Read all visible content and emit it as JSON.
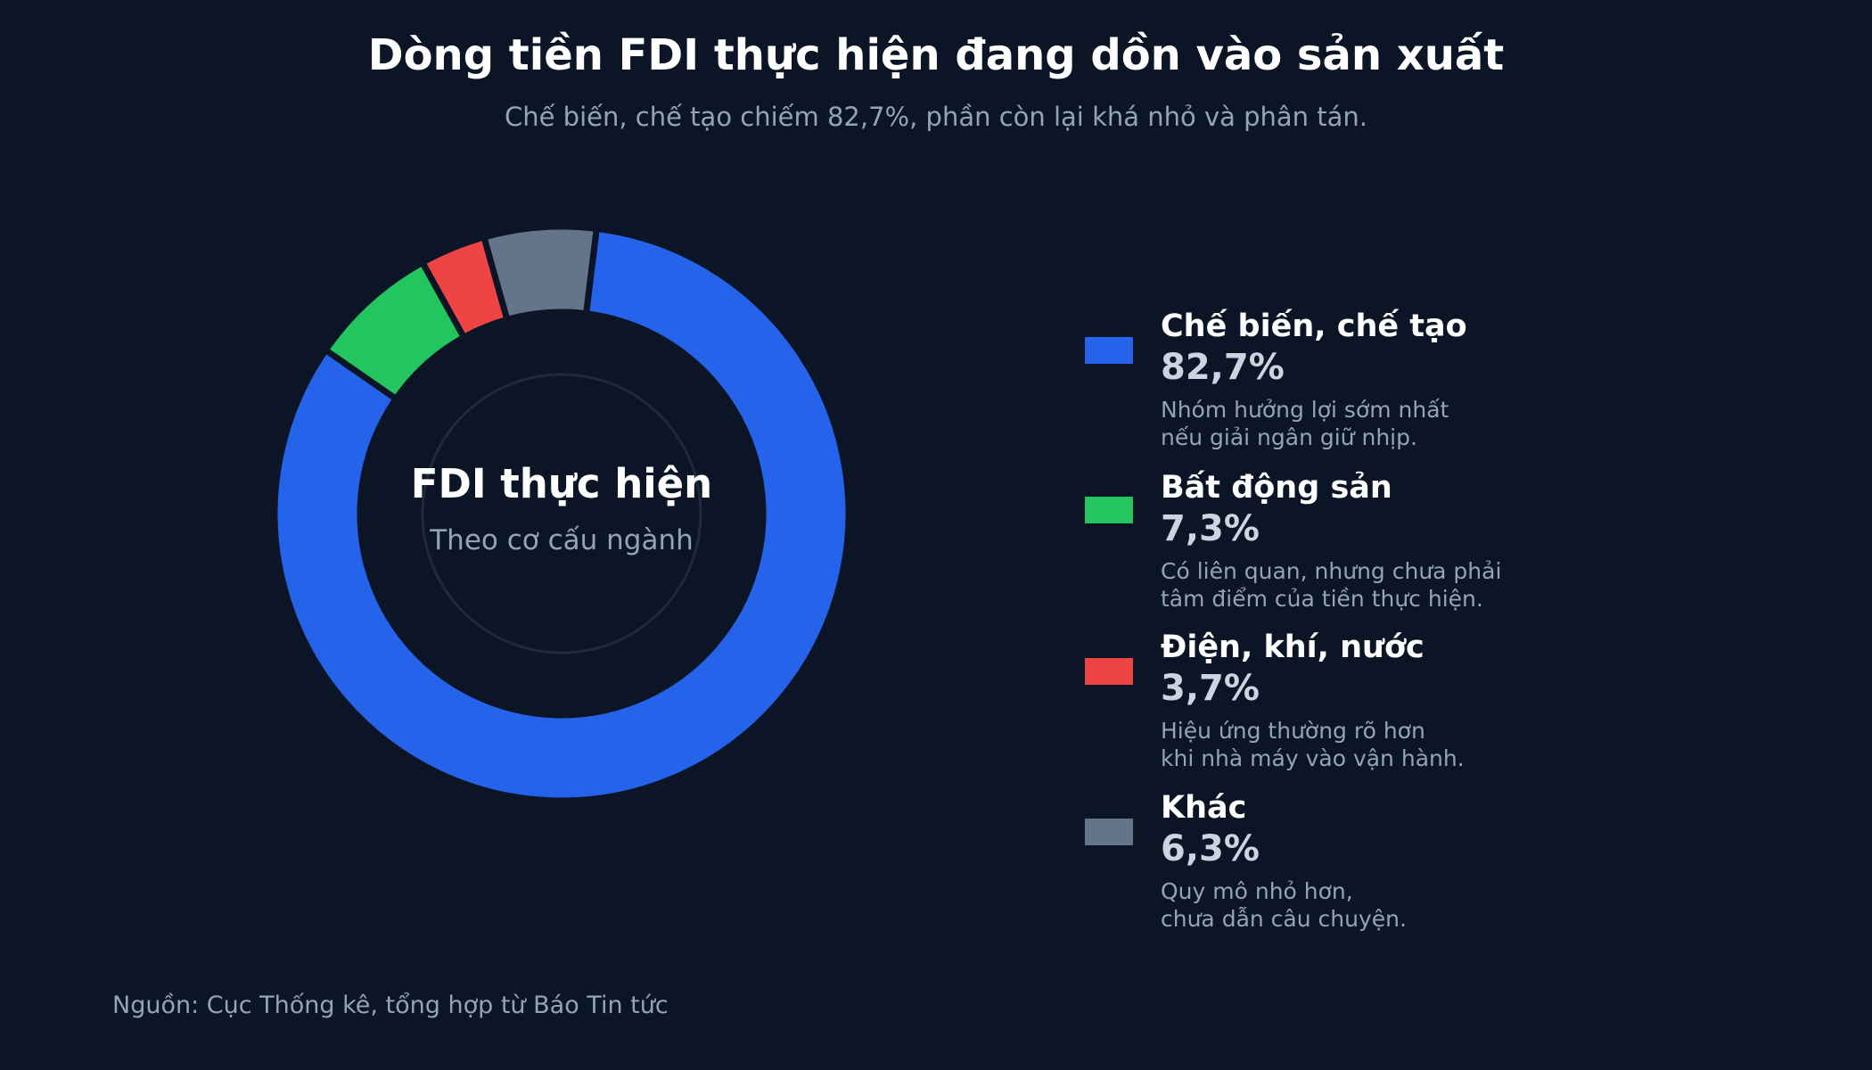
{
  "colors": {
    "background": "#0b1526",
    "manufacturing": "#2563eb",
    "real_estate": "#22c55e",
    "utilities": "#ef4444",
    "other": "#64748b"
  },
  "title": "Dòng tiền FDI thực hiện đang dồn vào sản xuất",
  "subtitle": "Chế biến, chế tạo chiếm 82,7%, phần còn lại khá nhỏ và phân tán.",
  "center": {
    "title": "FDI thực hiện",
    "subtitle": "Theo cơ cấu ngành"
  },
  "legend": [
    {
      "name": "Chế biến, chế tạo",
      "value_label": "82,7%",
      "note_lines": [
        "Nhóm hưởng lợi sớm nhất",
        "nếu giải ngân giữ nhịp."
      ],
      "color": "#2563eb"
    },
    {
      "name": "Bất động sản",
      "value_label": "7,3%",
      "note_lines": [
        "Có liên quan, nhưng chưa phải",
        "tâm điểm của tiền thực hiện."
      ],
      "color": "#22c55e"
    },
    {
      "name": "Điện, khí, nước",
      "value_label": "3,7%",
      "note_lines": [
        "Hiệu ứng thường rõ hơn",
        "khi nhà máy vào vận hành."
      ],
      "color": "#ef4444"
    },
    {
      "name": "Khác",
      "value_label": "6,3%",
      "note_lines": [
        "Quy mô nhỏ hơn,",
        "chưa dẫn câu chuyện."
      ],
      "color": "#64748b"
    }
  ],
  "source": "Nguồn: Cục Thống kê, tổng hợp từ Báo Tin tức",
  "chart_data": {
    "type": "pie",
    "style": "donut",
    "title": "Dòng tiền FDI thực hiện đang dồn vào sản xuất",
    "subtitle": "Chế biến, chế tạo chiếm 82,7%, phần còn lại khá nhỏ và phân tán.",
    "categories": [
      "Chế biến, chế tạo",
      "Bất động sản",
      "Điện, khí, nước",
      "Khác"
    ],
    "values": [
      82.7,
      7.3,
      3.7,
      6.3
    ],
    "unit": "%",
    "colors": [
      "#2563eb",
      "#22c55e",
      "#ef4444",
      "#64748b"
    ],
    "start_angle_deg": 7,
    "direction": "clockwise",
    "legend_position": "right"
  }
}
